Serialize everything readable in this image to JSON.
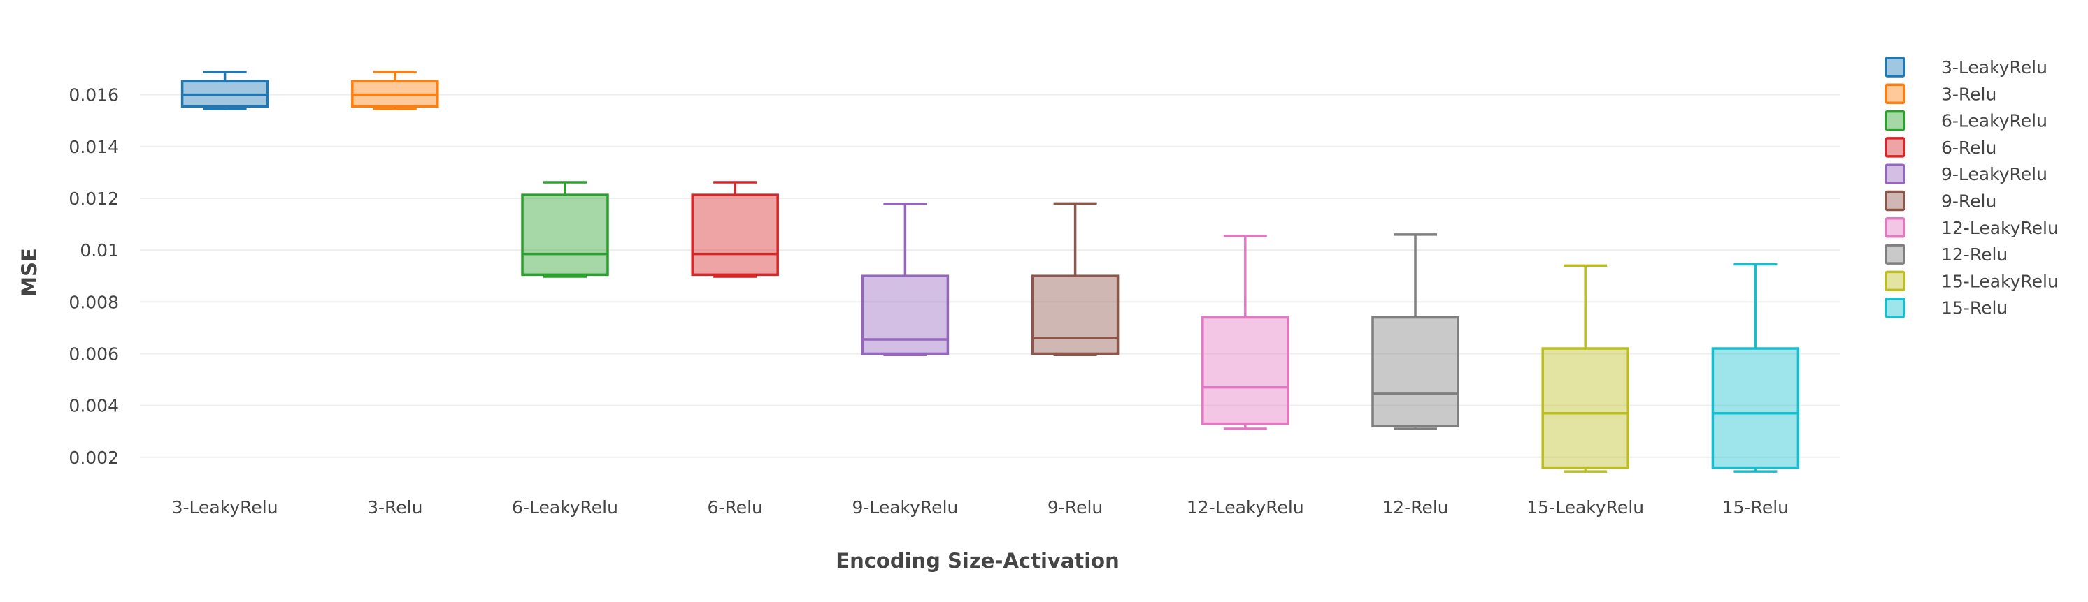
{
  "chart_data": {
    "type": "box",
    "title": "",
    "xlabel": "Encoding Size-Activation",
    "ylabel": "MSE",
    "ylim": [
      0.00105,
      0.0175
    ],
    "yticks": [
      0.002,
      0.004,
      0.006,
      0.008,
      0.01,
      0.012,
      0.014,
      0.016
    ],
    "ytick_labels": [
      "0.002",
      "0.004",
      "0.006",
      "0.008",
      "0.01",
      "0.012",
      "0.014",
      "0.016"
    ],
    "grid": true,
    "legend_position": "right",
    "categories": [
      "3-LeakyRelu",
      "3-Relu",
      "6-LeakyRelu",
      "6-Relu",
      "9-LeakyRelu",
      "9-Relu",
      "12-LeakyRelu",
      "12-Relu",
      "15-LeakyRelu",
      "15-Relu"
    ],
    "series": [
      {
        "name": "3-LeakyRelu",
        "color": "#1f77b4",
        "min": 0.01545,
        "q1": 0.01555,
        "median": 0.016,
        "q3": 0.01652,
        "max": 0.01688
      },
      {
        "name": "3-Relu",
        "color": "#ff7f0e",
        "min": 0.01545,
        "q1": 0.01555,
        "median": 0.016,
        "q3": 0.01652,
        "max": 0.01688
      },
      {
        "name": "6-LeakyRelu",
        "color": "#2ca02c",
        "min": 0.00898,
        "q1": 0.00905,
        "median": 0.00985,
        "q3": 0.01213,
        "max": 0.01262
      },
      {
        "name": "6-Relu",
        "color": "#d62728",
        "min": 0.00898,
        "q1": 0.00905,
        "median": 0.00985,
        "q3": 0.01213,
        "max": 0.01262
      },
      {
        "name": "9-LeakyRelu",
        "color": "#9467bd",
        "min": 0.00595,
        "q1": 0.006,
        "median": 0.00655,
        "q3": 0.009,
        "max": 0.01178
      },
      {
        "name": "9-Relu",
        "color": "#8c564b",
        "min": 0.00595,
        "q1": 0.006,
        "median": 0.0066,
        "q3": 0.009,
        "max": 0.0118
      },
      {
        "name": "12-LeakyRelu",
        "color": "#e377c2",
        "min": 0.0031,
        "q1": 0.0033,
        "median": 0.0047,
        "q3": 0.0074,
        "max": 0.01055
      },
      {
        "name": "12-Relu",
        "color": "#7f7f7f",
        "min": 0.0031,
        "q1": 0.0032,
        "median": 0.00445,
        "q3": 0.0074,
        "max": 0.0106
      },
      {
        "name": "15-LeakyRelu",
        "color": "#bcbd22",
        "min": 0.00145,
        "q1": 0.0016,
        "median": 0.0037,
        "q3": 0.0062,
        "max": 0.0094
      },
      {
        "name": "15-Relu",
        "color": "#17becf",
        "min": 0.00145,
        "q1": 0.0016,
        "median": 0.0037,
        "q3": 0.0062,
        "max": 0.00945
      }
    ]
  }
}
